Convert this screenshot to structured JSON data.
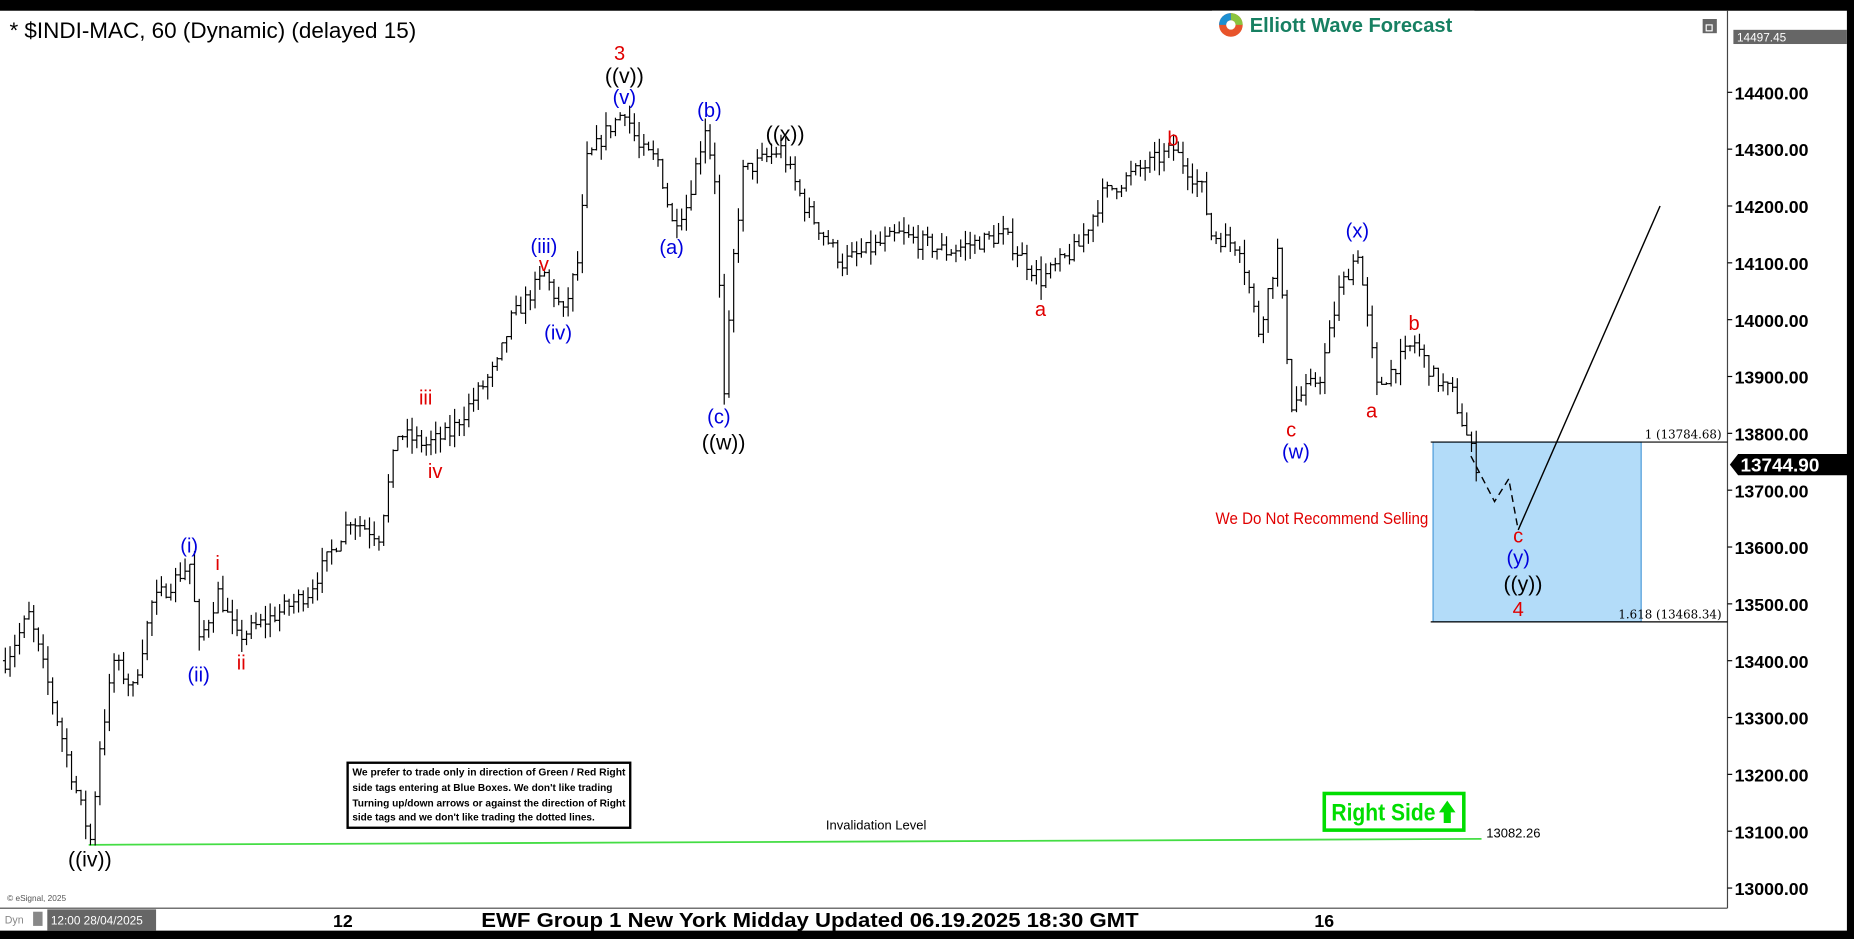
{
  "header": {
    "title": "* $INDI-MAC, 60 (Dynamic) (delayed 15)",
    "logo_text": "Elliott Wave Forecast"
  },
  "footer": {
    "caption": "EWF Group 1 New York Midday Updated 06.19.2025 18:30 GMT",
    "cursor_date": "12:00 28/04/2025",
    "dyn_label": "Dyn",
    "copyright": "© eSignal, 2025"
  },
  "disclaimer": {
    "lines": [
      "We prefer to trade only in direction of Green / Red Right",
      "side tags entering at Blue Boxes. We don't like trading",
      "Turning up/down arrows or against the direction of Right",
      "side tags and we don't like trading the dotted lines."
    ]
  },
  "right_side_tag": {
    "label": "Right Side",
    "arrow": "up-arrow-icon",
    "color": "#00dd00"
  },
  "warning": {
    "text": "We Do Not Recommend Selling",
    "color": "#e00000"
  },
  "colors": {
    "red": "#e00000",
    "blue": "#0000dd",
    "black": "#000000",
    "box": "#b3dcf9",
    "invalidation": "#44dd44"
  },
  "chart_data": {
    "type": "ohlc-bar",
    "symbol": "$INDI-MAC",
    "interval": "60",
    "ylim": [
      12960,
      14520
    ],
    "y_ticks": [
      "13000.00",
      "13100.00",
      "13200.00",
      "13300.00",
      "13400.00",
      "13500.00",
      "13600.00",
      "13700.00",
      "13800.00",
      "13900.00",
      "14000.00",
      "14100.00",
      "14200.00",
      "14300.00",
      "14400.00"
    ],
    "x_ticks": [
      "12",
      "16"
    ],
    "last_price": "13744.90",
    "top_price_tag": "14497.45",
    "price_waypoints": [
      [
        1,
        13400
      ],
      [
        6,
        13480
      ],
      [
        11,
        13330
      ],
      [
        15,
        13200
      ],
      [
        19,
        13085
      ],
      [
        21,
        13250
      ],
      [
        24,
        13400
      ],
      [
        28,
        13350
      ],
      [
        32,
        13500
      ],
      [
        40,
        13570
      ],
      [
        42,
        13430
      ],
      [
        46,
        13520
      ],
      [
        50,
        13440
      ],
      [
        58,
        13480
      ],
      [
        65,
        13520
      ],
      [
        74,
        13650
      ],
      [
        80,
        13620
      ],
      [
        84,
        13800
      ],
      [
        90,
        13780
      ],
      [
        95,
        13800
      ],
      [
        105,
        13920
      ],
      [
        108,
        14000
      ],
      [
        115,
        14080
      ],
      [
        119,
        14010
      ],
      [
        122,
        14100
      ],
      [
        124,
        14280
      ],
      [
        128,
        14330
      ],
      [
        132,
        14370
      ],
      [
        135,
        14300
      ],
      [
        139,
        14280
      ],
      [
        142,
        14170
      ],
      [
        145,
        14200
      ],
      [
        149,
        14340
      ],
      [
        151,
        14250
      ],
      [
        153,
        13860
      ],
      [
        155,
        14110
      ],
      [
        157,
        14260
      ],
      [
        165,
        14300
      ],
      [
        170,
        14200
      ],
      [
        178,
        14100
      ],
      [
        190,
        14150
      ],
      [
        200,
        14120
      ],
      [
        212,
        14150
      ],
      [
        220,
        14070
      ],
      [
        228,
        14130
      ],
      [
        233,
        14220
      ],
      [
        240,
        14260
      ],
      [
        248,
        14300
      ],
      [
        254,
        14230
      ],
      [
        256,
        14150
      ],
      [
        262,
        14130
      ],
      [
        266,
        13980
      ],
      [
        270,
        14120
      ],
      [
        273,
        13850
      ],
      [
        279,
        13900
      ],
      [
        283,
        14050
      ],
      [
        287,
        14120
      ],
      [
        289,
        14000
      ],
      [
        291,
        13880
      ],
      [
        299,
        13960
      ],
      [
        303,
        13900
      ],
      [
        307,
        13870
      ],
      [
        312,
        13745
      ]
    ],
    "projection": {
      "dashed": [
        [
          311,
          13760
        ],
        [
          316,
          13680
        ],
        [
          319,
          13720
        ],
        [
          321,
          13630
        ]
      ],
      "solid": [
        [
          321,
          13630
        ],
        [
          351,
          14200
        ]
      ]
    },
    "blue_box": {
      "bar_start": 303,
      "bar_end": 347,
      "top": 13784.68,
      "bottom": 13468.34
    },
    "fib_levels": [
      {
        "label": "1 (13784.68)",
        "price": 13784.68
      },
      {
        "label": "1.618 (13468.34)",
        "price": 13468.34
      }
    ],
    "invalidation": {
      "label": "Invalidation Level",
      "value_label": "13082.26",
      "price": 13082.26
    },
    "annotations": [
      {
        "text": "3",
        "color": "red",
        "bar": 131,
        "price": 14469
      },
      {
        "text": "((v))",
        "color": "black",
        "bar": 132,
        "price": 14429
      },
      {
        "text": "(v)",
        "color": "blue",
        "bar": 132,
        "price": 14392
      },
      {
        "text": "(b)",
        "color": "blue",
        "bar": 150,
        "price": 14369
      },
      {
        "text": "((x))",
        "color": "black",
        "bar": 166,
        "price": 14327
      },
      {
        "text": "(a)",
        "color": "blue",
        "bar": 142,
        "price": 14128
      },
      {
        "text": "(iii)",
        "color": "blue",
        "bar": 115,
        "price": 14130
      },
      {
        "text": "v",
        "color": "red",
        "bar": 115,
        "price": 14098
      },
      {
        "text": "(iv)",
        "color": "blue",
        "bar": 118,
        "price": 13978
      },
      {
        "text": "iii",
        "color": "red",
        "bar": 90,
        "price": 13863
      },
      {
        "text": "iv",
        "color": "red",
        "bar": 92,
        "price": 13734
      },
      {
        "text": "(c)",
        "color": "blue",
        "bar": 152,
        "price": 13830
      },
      {
        "text": "((w))",
        "color": "black",
        "bar": 153,
        "price": 13784
      },
      {
        "text": "(i)",
        "color": "blue",
        "bar": 40,
        "price": 13603
      },
      {
        "text": "i",
        "color": "red",
        "bar": 46,
        "price": 13572
      },
      {
        "text": "(ii)",
        "color": "blue",
        "bar": 42,
        "price": 13376
      },
      {
        "text": "ii",
        "color": "red",
        "bar": 51,
        "price": 13397
      },
      {
        "text": "((iv))",
        "color": "black",
        "bar": 19,
        "price": 13050
      },
      {
        "text": "a",
        "color": "red",
        "bar": 220,
        "price": 14019
      },
      {
        "text": "b",
        "color": "red",
        "bar": 248,
        "price": 14319
      },
      {
        "text": "c",
        "color": "red",
        "bar": 273,
        "price": 13807
      },
      {
        "text": "(w)",
        "color": "blue",
        "bar": 274,
        "price": 13768
      },
      {
        "text": "(x)",
        "color": "blue",
        "bar": 287,
        "price": 14157
      },
      {
        "text": "b",
        "color": "red",
        "bar": 299,
        "price": 13994
      },
      {
        "text": "a",
        "color": "red",
        "bar": 290,
        "price": 13840
      },
      {
        "text": "c",
        "color": "red",
        "bar": 321,
        "price": 13620
      },
      {
        "text": "(y)",
        "color": "blue",
        "bar": 321,
        "price": 13582
      },
      {
        "text": "((y))",
        "color": "black",
        "bar": 322,
        "price": 13535
      },
      {
        "text": "4",
        "color": "red",
        "bar": 321,
        "price": 13491
      }
    ]
  }
}
